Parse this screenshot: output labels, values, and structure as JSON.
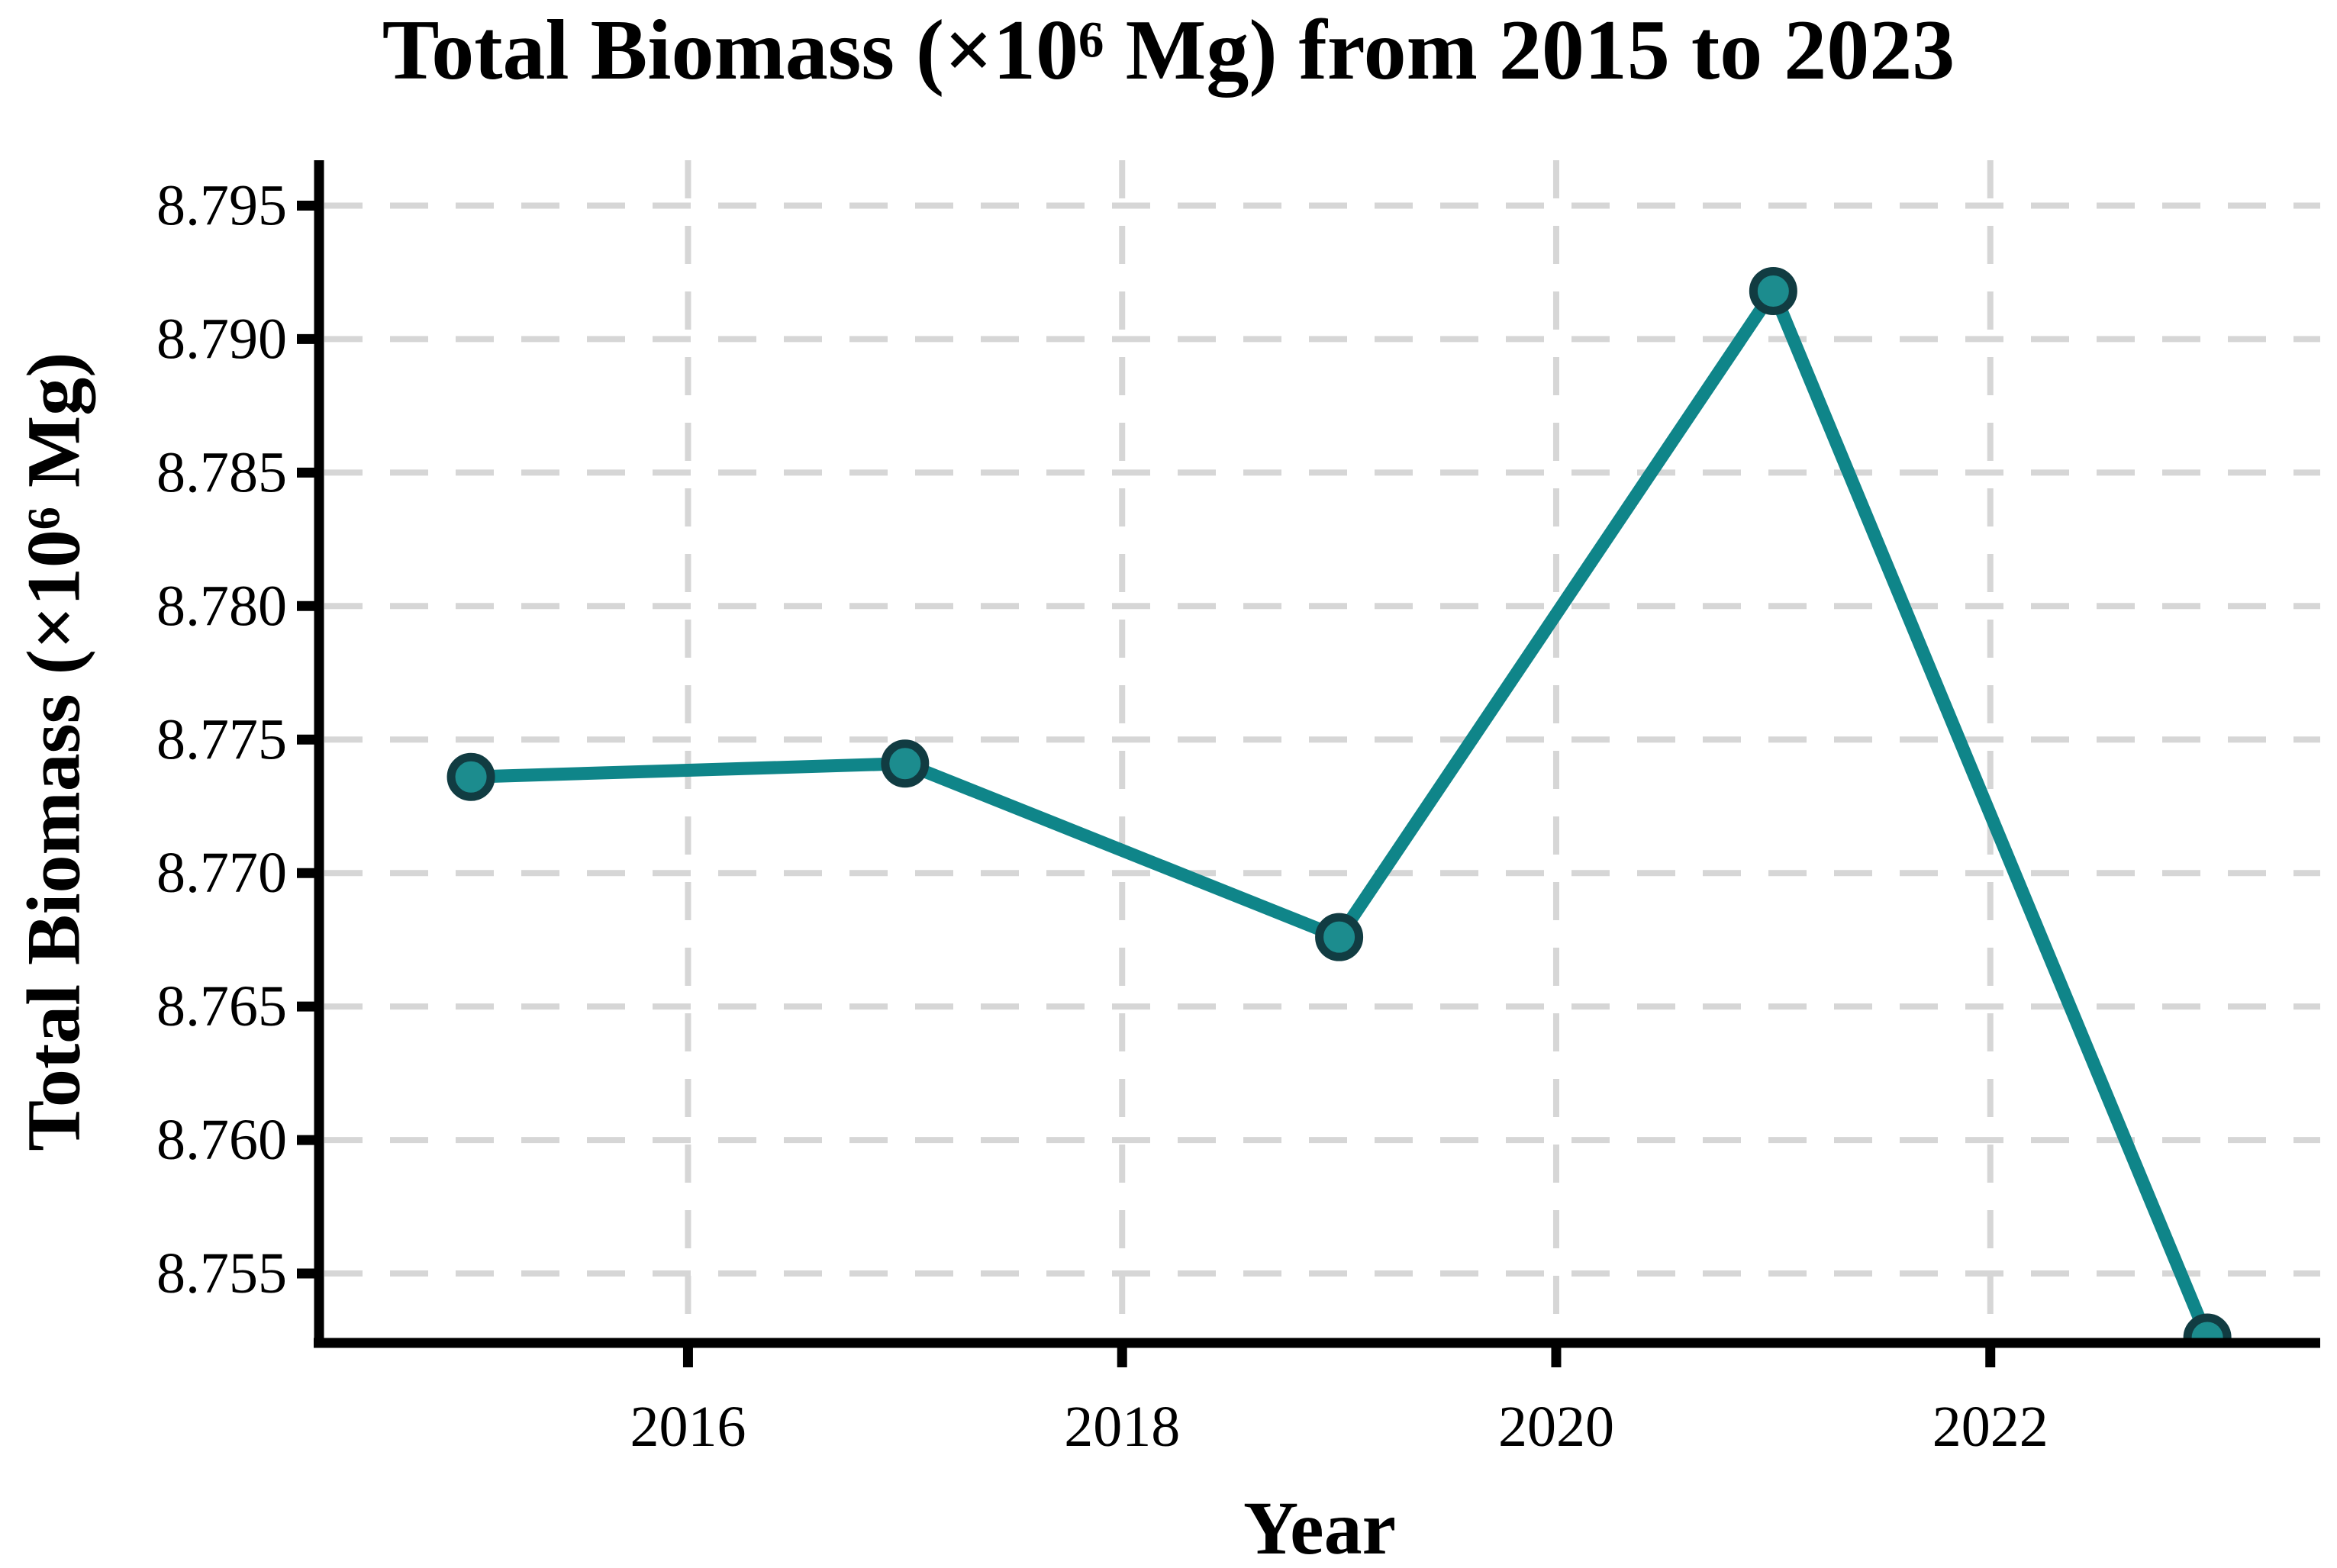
{
  "chart_data": {
    "type": "line",
    "title": "Total Biomass (×10⁶ Mg) from 2015 to 2023",
    "xlabel": "Year",
    "ylabel": "Total Biomass (×10⁶ Mg)",
    "series": [
      {
        "name": "Total Biomass",
        "x": [
          2015,
          2017,
          2019,
          2021,
          2023
        ],
        "y": [
          8.7736,
          8.7741,
          8.7676,
          8.7918,
          8.7526
        ]
      }
    ],
    "xlim": [
      2014.3,
      2023.52
    ],
    "ylim": [
      8.7524,
      8.7967
    ],
    "x_ticks": [
      2016,
      2018,
      2020,
      2022
    ],
    "x_tick_labels": [
      "2016",
      "2018",
      "2020",
      "2022"
    ],
    "y_ticks": [
      8.755,
      8.76,
      8.765,
      8.77,
      8.775,
      8.78,
      8.785,
      8.79,
      8.795
    ],
    "y_tick_labels": [
      "8.755",
      "8.760",
      "8.765",
      "8.770",
      "8.775",
      "8.780",
      "8.785",
      "8.790",
      "8.795"
    ],
    "grid": true,
    "grid_style": "dashed",
    "legend": "none",
    "colors": {
      "line": "#0f8589",
      "marker_face": "#1c8c8e",
      "marker_edge": "#113c42",
      "grid": "#d6d6d6",
      "axis": "#000000",
      "text": "#000000",
      "background": "#ffffff"
    }
  }
}
